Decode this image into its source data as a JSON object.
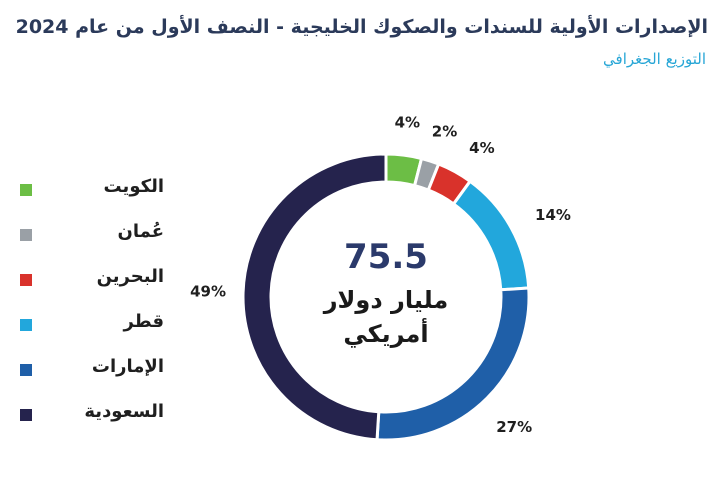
{
  "title": "الإصدارات الأولية للسندات والصكوك الخليجية - النصف الأول من عام 2024",
  "subtitle": "التوزيع الجغرافي",
  "center": {
    "value": "75.5",
    "line1": "مليار دولار",
    "line2": "أمريكي"
  },
  "legend": [
    {
      "label": "الكويت",
      "color": "#6cbe45"
    },
    {
      "label": "عُمان",
      "color": "#9aa0a6"
    },
    {
      "label": "البحرين",
      "color": "#d9322b"
    },
    {
      "label": "قطر",
      "color": "#22a7dc"
    },
    {
      "label": "الإمارات",
      "color": "#1f5fa8"
    },
    {
      "label": "السعودية",
      "color": "#25234d"
    }
  ],
  "chart_data": {
    "type": "pie",
    "variant": "donut",
    "categories": [
      "الكويت",
      "عُمان",
      "البحرين",
      "قطر",
      "الإمارات",
      "السعودية"
    ],
    "values": [
      4,
      2,
      4,
      14,
      27,
      49
    ],
    "labels": [
      "4%",
      "2%",
      "4%",
      "14%",
      "27%",
      "49%"
    ],
    "colors": [
      "#6cbe45",
      "#9aa0a6",
      "#d9322b",
      "#22a7dc",
      "#1f5fa8",
      "#25234d"
    ],
    "start": "12 o'clock, clockwise",
    "legend_position": "left"
  }
}
